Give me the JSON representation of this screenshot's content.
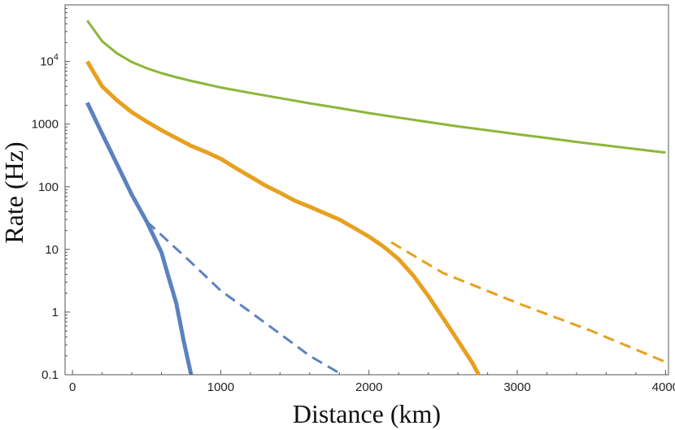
{
  "chart_data": {
    "type": "line",
    "title": "",
    "xlabel": "Distance (km)",
    "ylabel": "Rate (Hz)",
    "xlim": [
      -50,
      4020
    ],
    "ylim": [
      0.1,
      80000
    ],
    "yscale": "log",
    "grid": false,
    "legend": "none",
    "x_ticks": [
      {
        "value": 0,
        "label": "0"
      },
      {
        "value": 1000,
        "label": "1000"
      },
      {
        "value": 2000,
        "label": "2000"
      },
      {
        "value": 3000,
        "label": "3000"
      },
      {
        "value": 4000,
        "label": "4000"
      }
    ],
    "y_ticks": [
      {
        "value": 0.1,
        "label": "0.1"
      },
      {
        "value": 1,
        "label": "1"
      },
      {
        "value": 10,
        "label": "10"
      },
      {
        "value": 100,
        "label": "100"
      },
      {
        "value": 1000,
        "label": "1000"
      },
      {
        "value": 10000,
        "label": "10",
        "exponent": "4"
      }
    ],
    "series": [
      {
        "color": "#8db63a",
        "style": "solid",
        "width": 3,
        "x": [
          100,
          200,
          300,
          400,
          500,
          600,
          700,
          800,
          1000,
          1200,
          1400,
          1600,
          1800,
          2000,
          2200,
          2400,
          2600,
          2800,
          3000,
          3200,
          3400,
          3600,
          3800,
          4000
        ],
        "y": [
          45000,
          21000,
          13500,
          9800,
          7800,
          6500,
          5600,
          4900,
          3850,
          3150,
          2600,
          2150,
          1800,
          1500,
          1270,
          1080,
          920,
          800,
          690,
          600,
          520,
          455,
          400,
          350
        ]
      },
      {
        "color": "#e8a020",
        "style": "solid",
        "width": 5,
        "x": [
          100,
          200,
          300,
          400,
          500,
          600,
          700,
          800,
          900,
          1000,
          1100,
          1200,
          1300,
          1400,
          1500,
          1600,
          1700,
          1800,
          1900,
          2000,
          2100,
          2200,
          2300,
          2400,
          2500,
          2600,
          2700,
          2740
        ],
        "y": [
          10000,
          4000,
          2400,
          1550,
          1100,
          800,
          600,
          450,
          360,
          280,
          200,
          145,
          105,
          80,
          60,
          48,
          38,
          30,
          22,
          16,
          11,
          7,
          3.8,
          1.8,
          0.8,
          0.35,
          0.15,
          0.1
        ]
      },
      {
        "color": "#e8a020",
        "style": "dashed",
        "width": 3,
        "x": [
          2150,
          2500,
          3000,
          3500,
          4000
        ],
        "y": [
          13,
          4.2,
          1.4,
          0.5,
          0.16
        ]
      },
      {
        "color": "#5b82bf",
        "style": "solid",
        "width": 5,
        "x": [
          100,
          200,
          300,
          400,
          500,
          600,
          650,
          700,
          750,
          800
        ],
        "y": [
          2200,
          700,
          230,
          75,
          28,
          9,
          3.5,
          1.4,
          0.35,
          0.1
        ]
      },
      {
        "color": "#5b82bf",
        "style": "dashed",
        "width": 3,
        "x": [
          500,
          800,
          1000,
          1200,
          1400,
          1600,
          1820
        ],
        "y": [
          28,
          6.2,
          2.2,
          1,
          0.45,
          0.2,
          0.1
        ]
      }
    ]
  }
}
